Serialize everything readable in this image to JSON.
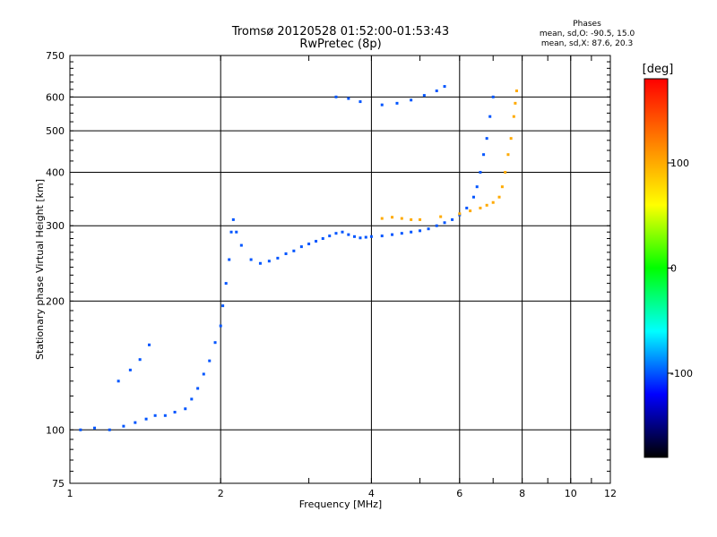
{
  "chart_data": {
    "type": "scatter",
    "title": "Tromsø 20120528 01:52:00-01:53:43",
    "subtitle": "RwPretec (8p)",
    "xlabel": "Frequency [MHz]",
    "ylabel": "Stationary phase Virtual Height [km]",
    "x_scale": "log",
    "y_scale": "log",
    "xlim": [
      1,
      12
    ],
    "ylim": [
      75,
      750
    ],
    "x_ticks": [
      1,
      2,
      4,
      6,
      8,
      10,
      12
    ],
    "x_tick_labels": [
      "1",
      "2",
      "4",
      "6",
      "8",
      "10",
      "12"
    ],
    "y_ticks": [
      75,
      100,
      200,
      300,
      400,
      500,
      600,
      750
    ],
    "y_tick_labels": [
      "75",
      "100",
      "200",
      "300",
      "400",
      "500",
      "600",
      "750"
    ],
    "grid": true,
    "legend": {
      "title": "Phases",
      "lines": [
        "mean, sd,O: -90.5, 15.0",
        "mean, sd,X:  87.6, 20.3"
      ]
    },
    "colorbar": {
      "label": "[deg]",
      "range": [
        -180,
        180
      ],
      "ticks": [
        100,
        0,
        -100
      ],
      "tick_labels": [
        "100",
        "0",
        "-100"
      ],
      "colors": [
        "#ff0000",
        "#ff8000",
        "#ffff00",
        "#00ff00",
        "#00ffff",
        "#0000ff",
        "#000000"
      ]
    },
    "series": [
      {
        "mode": "O",
        "x": [
          1.05,
          1.12,
          1.2,
          1.28,
          1.35,
          1.42,
          1.48,
          1.55,
          1.62,
          1.7,
          1.75,
          1.8,
          1.85,
          1.9,
          1.95,
          2.0,
          2.02,
          2.05,
          2.08,
          2.1,
          2.12,
          2.15,
          2.2,
          2.3,
          2.4,
          2.5,
          2.6,
          2.7,
          2.8,
          2.9,
          3.0,
          3.1,
          3.2,
          3.3,
          3.4,
          3.5,
          3.6,
          3.7,
          3.8,
          3.9,
          4.0,
          4.2,
          4.4,
          4.6,
          4.8,
          5.0,
          5.2,
          5.4,
          5.6,
          5.8,
          6.0,
          6.2,
          6.4,
          6.5,
          6.6,
          6.7,
          6.8,
          6.9,
          7.0
        ],
        "y": [
          100,
          101,
          100,
          102,
          104,
          106,
          108,
          108,
          110,
          112,
          118,
          125,
          135,
          145,
          160,
          175,
          195,
          220,
          250,
          290,
          310,
          290,
          270,
          250,
          245,
          248,
          252,
          258,
          262,
          268,
          272,
          276,
          280,
          284,
          288,
          290,
          286,
          283,
          281,
          282,
          283,
          284,
          286,
          288,
          290,
          292,
          295,
          300,
          305,
          310,
          318,
          330,
          350,
          370,
          400,
          440,
          480,
          540,
          600
        ],
        "phase": -100
      },
      {
        "mode": "O",
        "x": [
          3.4,
          3.6,
          3.8,
          4.2,
          4.5,
          4.8,
          5.1,
          5.4,
          5.6
        ],
        "y": [
          600,
          595,
          585,
          575,
          580,
          590,
          605,
          620,
          635
        ],
        "phase": -100
      },
      {
        "mode": "O",
        "x": [
          1.25,
          1.32,
          1.38,
          1.44
        ],
        "y": [
          130,
          138,
          146,
          158
        ],
        "phase": -100
      },
      {
        "mode": "X",
        "x": [
          4.2,
          4.4,
          4.6,
          4.8,
          5.0,
          5.5,
          6.0,
          6.3,
          6.6,
          6.8,
          7.0,
          7.2,
          7.3,
          7.4,
          7.5,
          7.6,
          7.7,
          7.75,
          7.8
        ],
        "y": [
          312,
          314,
          312,
          310,
          310,
          315,
          320,
          325,
          330,
          335,
          340,
          350,
          370,
          400,
          440,
          480,
          540,
          580,
          620
        ],
        "phase": 100
      }
    ]
  }
}
